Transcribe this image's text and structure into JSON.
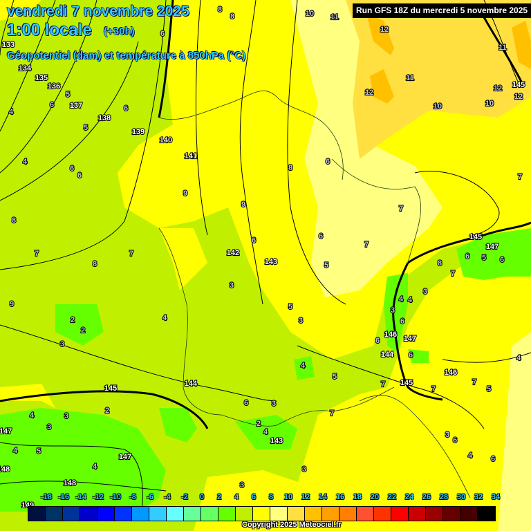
{
  "header": {
    "date": "vendredi 7 novembre 2025",
    "time": "1:00 locale",
    "lead": "(+30h)",
    "parameter": "Géopotentiel (dam) et température à 850hPa (°C)",
    "run": "Run GFS 18Z du mercredi 5 novembre 2025"
  },
  "legend": {
    "ticks": [
      "-18",
      "-16",
      "-14",
      "-12",
      "-10",
      "-8",
      "-6",
      "-4",
      "-2",
      "0",
      "2",
      "4",
      "6",
      "8",
      "10",
      "12",
      "14",
      "16",
      "18",
      "20",
      "22",
      "24",
      "26",
      "28",
      "30",
      "32",
      "34"
    ],
    "colors": [
      "#001040",
      "#003366",
      "#003399",
      "#0000cc",
      "#0000ff",
      "#0033ff",
      "#0099ff",
      "#33ccff",
      "#66ffff",
      "#66ff99",
      "#66ff66",
      "#66ff00",
      "#c0f000",
      "#ffff00",
      "#ffff80",
      "#ffe040",
      "#ffc000",
      "#ffa000",
      "#ff8000",
      "#ff5030",
      "#ff3300",
      "#ff0000",
      "#cc0000",
      "#990000",
      "#660000",
      "#440000",
      "#000000"
    ]
  },
  "copyright": "Copyright 2025 Meteociel.fr",
  "map": {
    "geopotential_labels": [
      "133",
      "134",
      "135",
      "136",
      "137",
      "138",
      "139",
      "140",
      "141",
      "142",
      "143",
      "144",
      "145",
      "147",
      "148",
      "148",
      "147",
      "143",
      "146",
      "147",
      "144",
      "145",
      "146",
      "145",
      "147",
      "145",
      "149"
    ],
    "temperature_labels": [
      "6",
      "8",
      "8",
      "10",
      "11",
      "12",
      "12",
      "11",
      "12",
      "11",
      "10",
      "10",
      "12",
      "5",
      "6",
      "5",
      "6",
      "4",
      "4",
      "6",
      "6",
      "8",
      "7",
      "7",
      "8",
      "9",
      "9",
      "9",
      "8",
      "6",
      "7",
      "7",
      "7",
      "5",
      "6",
      "6",
      "5",
      "3",
      "3",
      "4",
      "2",
      "2",
      "3",
      "4",
      "3",
      "3",
      "4",
      "5",
      "4",
      "3",
      "2",
      "4",
      "3",
      "6",
      "4",
      "5",
      "7",
      "3",
      "2",
      "4",
      "3",
      "4",
      "3",
      "6",
      "6",
      "6",
      "7",
      "7",
      "7",
      "5",
      "4",
      "3",
      "6",
      "4",
      "6",
      "8",
      "7",
      "6",
      "5",
      "6"
    ],
    "colors": {
      "title": "#33ccff",
      "cold": "#66ff00",
      "mild": "#c0f000",
      "warm": "#ffff00",
      "warmer": "#ffff80",
      "hot": "#ffe040",
      "hotter": "#ffc000"
    }
  }
}
